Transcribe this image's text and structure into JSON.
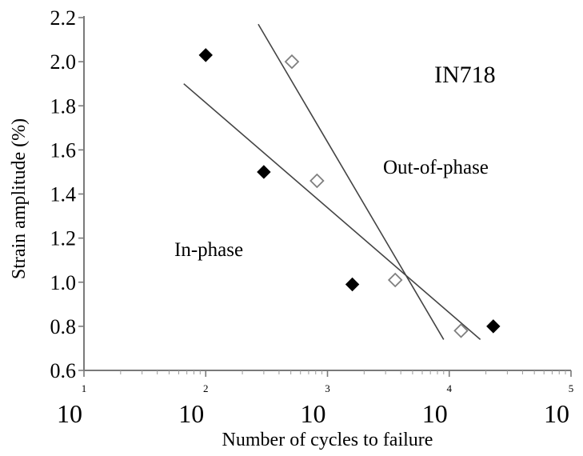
{
  "chart_data": {
    "type": "scatter",
    "x_scale": "log",
    "y_scale": "linear",
    "xlim": [
      10,
      100000
    ],
    "ylim": [
      0.6,
      2.2
    ],
    "grid": false,
    "xlabel": "Number of cycles to failure",
    "ylabel": "Strain amplitude (%)",
    "x_tick_bases": [
      "10",
      "10",
      "10",
      "10",
      "10"
    ],
    "x_tick_exponents": [
      "1",
      "2",
      "3",
      "4",
      "5"
    ],
    "x_tick_values": [
      10,
      100,
      1000,
      10000,
      100000
    ],
    "y_tick_labels": [
      "0.6",
      "0.8",
      "1.0",
      "1.2",
      "1.4",
      "1.6",
      "1.8",
      "2.0",
      "2.2"
    ],
    "y_tick_values": [
      0.6,
      0.8,
      1.0,
      1.2,
      1.4,
      1.6,
      1.8,
      2.0,
      2.2
    ],
    "annotations": {
      "material": "IN718",
      "out_of_phase_label": "Out-of-phase",
      "in_phase_label": "In-phase"
    },
    "series": [
      {
        "name": "In-phase",
        "marker": "filled-diamond",
        "points": [
          {
            "x": 100,
            "y": 2.03
          },
          {
            "x": 300,
            "y": 1.5
          },
          {
            "x": 1600,
            "y": 0.99
          },
          {
            "x": 23000,
            "y": 0.8
          }
        ]
      },
      {
        "name": "Out-of-phase",
        "marker": "open-diamond",
        "points": [
          {
            "x": 510,
            "y": 2.0
          },
          {
            "x": 820,
            "y": 1.46
          },
          {
            "x": 3600,
            "y": 1.01
          },
          {
            "x": 12500,
            "y": 0.78
          }
        ]
      }
    ],
    "fit_lines": [
      {
        "series": "In-phase",
        "points": [
          {
            "x": 66,
            "y": 1.9
          },
          {
            "x": 18000,
            "y": 0.74
          }
        ]
      },
      {
        "series": "Out-of-phase",
        "points": [
          {
            "x": 270,
            "y": 2.17
          },
          {
            "x": 9000,
            "y": 0.74
          }
        ]
      }
    ],
    "colors": {
      "axis": "#7a7a7a",
      "text": "#000000",
      "fit_line": "#444444",
      "filled_marker": "#000000",
      "open_marker_stroke": "#7f7f7f",
      "open_marker_fill": "#ffffff"
    }
  }
}
